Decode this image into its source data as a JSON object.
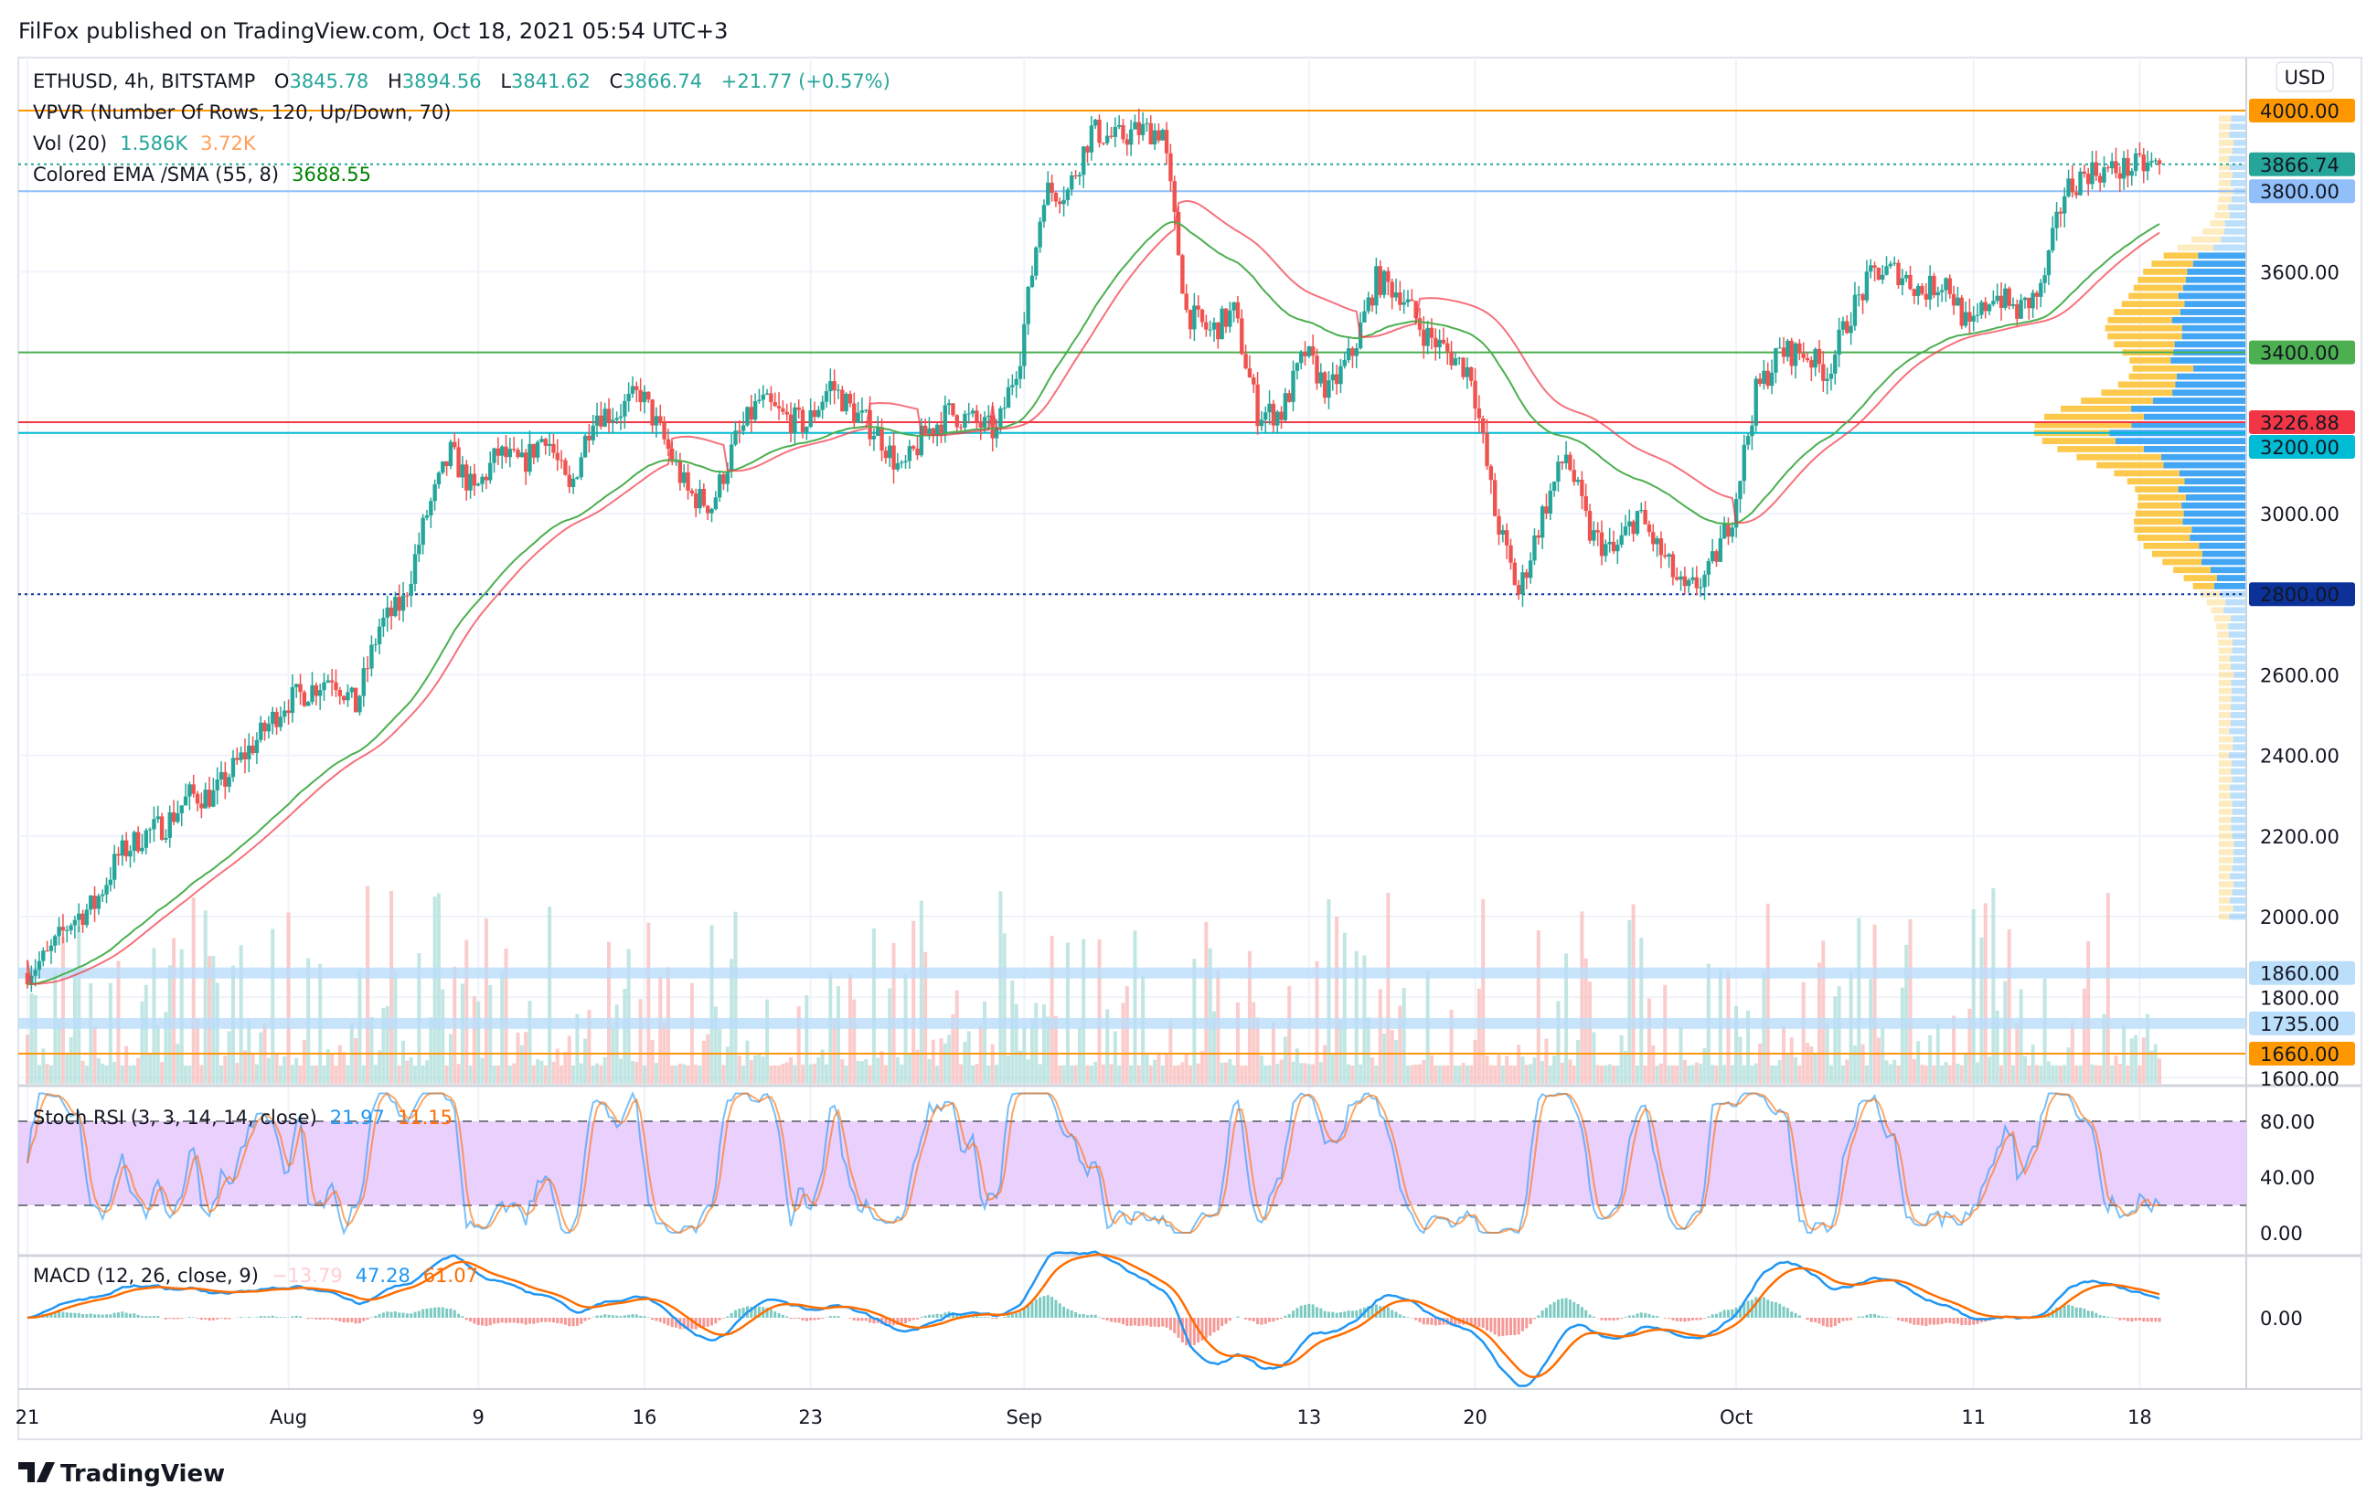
{
  "header": {
    "published": "FilFox published on TradingView.com, Oct 18, 2021 05:54 UTC+3"
  },
  "legend": {
    "symbol": "ETHUSD, 4h, BITSTAMP",
    "o_label": "O",
    "o": "3845.78",
    "h_label": "H",
    "h": "3894.56",
    "l_label": "L",
    "l": "3841.62",
    "c_label": "C",
    "c": "3866.74",
    "change": "+21.77 (+0.57%)",
    "vpvr": "VPVR (Number Of Rows, 120, Up/Down, 70)",
    "vol_label": "Vol (20)",
    "vol_1": "1.586K",
    "vol_2": "3.72K",
    "ema_label": "Colored EMA /SMA (55, 8)",
    "ema_value": "3688.55"
  },
  "currency_button": "USD",
  "price_axis": [
    "3600.00",
    "3000.00",
    "2600.00",
    "2400.00",
    "2200.00",
    "2000.00",
    "1800.00",
    "1600.00"
  ],
  "price_axis_values": [
    3600,
    3000,
    2600,
    2400,
    2200,
    2000,
    1800,
    1600
  ],
  "levels": [
    {
      "price": 4000,
      "label": "4000.00",
      "color": "#ff9800",
      "style": "solid",
      "text": "#131722"
    },
    {
      "price": 3866.74,
      "label": "3866.74",
      "color": "#26a69a",
      "style": "dotted",
      "text": "#ffffff"
    },
    {
      "price": 3800,
      "label": "3800.00",
      "color": "#90bff9",
      "style": "solid",
      "text": "#131722"
    },
    {
      "price": 3400,
      "label": "3400.00",
      "color": "#4caf50",
      "style": "solid",
      "text": "#131722"
    },
    {
      "price": 3226.88,
      "label": "3226.88",
      "color": "#f23645",
      "style": "solid",
      "text": "#ffffff"
    },
    {
      "price": 3200,
      "label": "3200.00",
      "color": "#00bcd4",
      "style": "solid",
      "text": "#131722"
    },
    {
      "price": 2800,
      "label": "2800.00",
      "color": "#0c3299",
      "style": "dotted",
      "text": "#ffffff"
    },
    {
      "price": 1860,
      "label": "1860.00",
      "color": "#bbdefb",
      "style": "thick",
      "text": "#131722"
    },
    {
      "price": 1735,
      "label": "1735.00",
      "color": "#bbdefb",
      "style": "thick",
      "text": "#131722"
    },
    {
      "price": 1660,
      "label": "1660.00",
      "color": "#ff9800",
      "style": "solid",
      "text": "#131722"
    }
  ],
  "stoch": {
    "label": "Stoch RSI (3, 3, 14, 14, close)",
    "k": "21.97",
    "d": "11.15",
    "axis": [
      "80.00",
      "40.00",
      "0.00"
    ],
    "axis_values": [
      80,
      40,
      0
    ]
  },
  "macd": {
    "label": "MACD (12, 26, close, 9)",
    "hist": "−13.79",
    "macd": "47.28",
    "signal": "61.07",
    "axis": [
      "0.00"
    ]
  },
  "time_axis": [
    {
      "label": "21",
      "day": 0
    },
    {
      "label": "Aug",
      "day": 11
    },
    {
      "label": "9",
      "day": 19
    },
    {
      "label": "16",
      "day": 26
    },
    {
      "label": "23",
      "day": 33
    },
    {
      "label": "Sep",
      "day": 42
    },
    {
      "label": "13",
      "day": 54
    },
    {
      "label": "20",
      "day": 61
    },
    {
      "label": "Oct",
      "day": 72
    },
    {
      "label": "11",
      "day": 82
    },
    {
      "label": "18",
      "day": 89
    }
  ],
  "footer": {
    "brand": "TradingView"
  },
  "colors": {
    "up": "#26a69a",
    "down": "#ef5350",
    "ema": "#4caf50",
    "sma": "#f23645",
    "k": "#2196f3",
    "d": "#ff6d00"
  },
  "chart_data": {
    "type": "candlestick",
    "title": "ETHUSD, 4h, BITSTAMP",
    "x_start": "Jul 21, 2021",
    "x_end": "Oct 18, 2021",
    "ylim": [
      1600,
      4050
    ],
    "daily_close": [
      1900,
      1990,
      2030,
      2150,
      2200,
      2230,
      2300,
      2300,
      2380,
      2450,
      2530,
      2560,
      2600,
      2520,
      2720,
      2780,
      3000,
      3150,
      3050,
      3150,
      3120,
      3200,
      3050,
      3250,
      3250,
      3300,
      3180,
      3050,
      3020,
      3180,
      3280,
      3240,
      3220,
      3320,
      3250,
      3200,
      3100,
      3200,
      3250,
      3230,
      3200,
      3400,
      3800,
      3800,
      3950,
      3930,
      3950,
      3950,
      3500,
      3450,
      3500,
      3250,
      3250,
      3400,
      3300,
      3400,
      3580,
      3550,
      3450,
      3400,
      3350,
      3000,
      2800,
      3000,
      3150,
      2950,
      2900,
      3000,
      2900,
      2800,
      2850,
      3000,
      3300,
      3400,
      3400,
      3350,
      3500,
      3600,
      3600,
      3550,
      3580,
      3450,
      3550,
      3500,
      3550,
      3800,
      3850,
      3850,
      3860,
      3866.74
    ]
  }
}
